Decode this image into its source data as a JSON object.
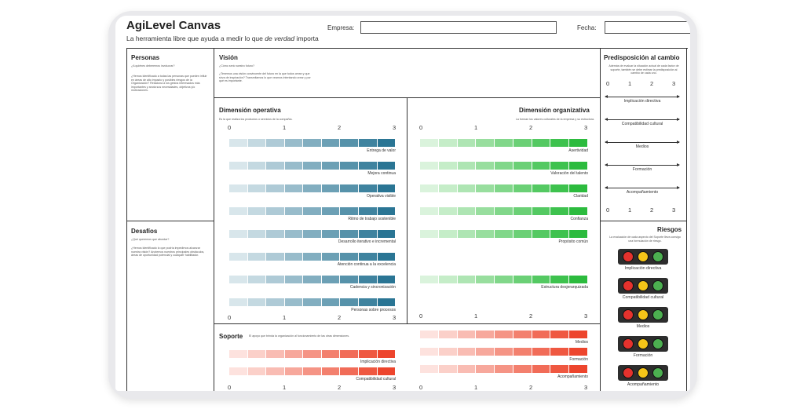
{
  "header": {
    "title": "AgiLevel Canvas",
    "subtitle_before": "La herramienta libre que ayuda a medir lo que ",
    "subtitle_em": "de verdad",
    "subtitle_after": " importa",
    "empresa_label": "Empresa:",
    "fecha_label": "Fecha:"
  },
  "personas": {
    "title": "Personas",
    "q1": "¿A quiénes deberemos involucrar?",
    "q2": "¿Hemos identificado a todas las personas que pueden influir en áreas de alto impacto y posibles riesgos de la Organización? Relaciona a los gestos interesados más importantes y anota sus necesidades, objetivos y/o motivaciones."
  },
  "desafios": {
    "title": "Desafíos",
    "q1": "¿Qué queremos que abordar?",
    "q2": "¿Hemos identificado lo que podría impedirnos alcanzar nuestra visión? Anotemos nuestros principales obstáculos, áreas de oportunidad potencial y cualquier habilitador."
  },
  "vision": {
    "title": "Visión",
    "q1": "¿Cómo será nuestro futuro?",
    "q2": "¿Tenemos una visión convincente del futuro en la que todos crean y que sirva de inspiración? Transmitamos lo que veamos intentando crear y por qué es importante."
  },
  "operativa": {
    "title": "Dimensión operativa",
    "desc": "Es la que realiza los productos o servicios de la compañía.",
    "ticks": [
      "0",
      "1",
      "2",
      "3"
    ],
    "items": [
      "Entrega de valor",
      "Mejora continua",
      "Operativa visible",
      "Ritmo de trabajo sostenible",
      "Desarrollo iterativo e incremental",
      "Atención continua a la excelencia",
      "Cadencia y sincronización",
      "Personas sobre procesos"
    ]
  },
  "organizativa": {
    "title": "Dimensión organizativa",
    "desc": "La forman los valores culturales de la empresa y su estructura.",
    "ticks": [
      "0",
      "1",
      "2",
      "3"
    ],
    "items": [
      "Asertividad",
      "Valoración del talento",
      "Claridad",
      "Confianza",
      "Propósito común",
      "Estructura desjerarquizada"
    ]
  },
  "soporte": {
    "title": "Soporte",
    "desc": "El apoyo que brinda la organización al funcionamiento de las otras dimensiones.",
    "ticks": [
      "0",
      "1",
      "2",
      "3"
    ],
    "left_items": [
      "Implicación directiva",
      "Compatibilidad cultural"
    ],
    "right_items": [
      "Medios",
      "Formación",
      "Acompañamiento"
    ]
  },
  "predisposicion": {
    "title": "Predisposición al cambio",
    "desc": "Además de evaluar la situación actual de cada factor de soporte, también se debe estimar la predisposición al cambio de cada uno.",
    "ticks": [
      "0",
      "1",
      "2",
      "3"
    ],
    "items": [
      "Implicación directiva",
      "Compatibilidad cultural",
      "Medios",
      "Formación",
      "Acompañamiento"
    ]
  },
  "riesgos": {
    "title": "Riesgos",
    "desc": "La evaluación de cada aspecto del Soporte lleva consigo una formulación de riesgo.",
    "items": [
      "Implicación directiva",
      "Compatibilidad cultural",
      "Medios",
      "Formación",
      "Acompañamiento"
    ]
  },
  "colors": {
    "blue": [
      "#d8e6eb",
      "#c4d9e1",
      "#aecad6",
      "#98bccb",
      "#82aec0",
      "#6ca0b5",
      "#5692aa",
      "#3f839f",
      "#2a7594"
    ],
    "green": [
      "#daf3dc",
      "#c5edc8",
      "#aee5b3",
      "#98de9e",
      "#81d78a",
      "#6bd076",
      "#54c962",
      "#3ec24e",
      "#2cbb3e"
    ],
    "red": [
      "#fde2de",
      "#fbd0c9",
      "#f9bcb3",
      "#f7a89c",
      "#f59485",
      "#f3806e",
      "#f16c58",
      "#ef5841",
      "#ed452d"
    ],
    "traffic": [
      "#e5322d",
      "#f5c518",
      "#4caf50"
    ]
  }
}
